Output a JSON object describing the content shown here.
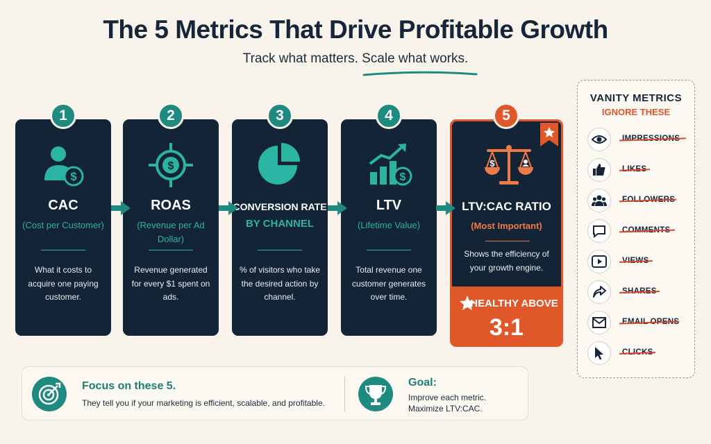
{
  "header": {
    "title": "The 5 Metrics That Drive Profitable Growth",
    "subtitle": "Track what matters. Scale what works."
  },
  "metrics": [
    {
      "number": "1",
      "title": "CAC",
      "subtitle": "(Cost per Customer)",
      "description": "What it costs to acquire one paying customer.",
      "icon": "customer-dollar-icon"
    },
    {
      "number": "2",
      "title": "ROAS",
      "subtitle": "(Revenue per Ad Dollar)",
      "description": "Revenue generated for every $1 spent on ads.",
      "icon": "target-dollar-icon"
    },
    {
      "number": "3",
      "title": "CONVERSION RATE",
      "subtitle": "BY CHANNEL",
      "description": "% of visitors who take the desired action by channel.",
      "icon": "pie-chart-icon"
    },
    {
      "number": "4",
      "title": "LTV",
      "subtitle": "(Lifetime Value)",
      "description": "Total revenue one customer generates over time.",
      "icon": "growth-chart-icon"
    },
    {
      "number": "5",
      "title": "LTV:CAC RATIO",
      "subtitle": "(Most Important)",
      "description": "Shows the efficiency of your growth engine.",
      "icon": "balance-scale-icon",
      "highlight_label": "HEALTHY ABOVE",
      "highlight_value": "3:1"
    }
  ],
  "bottom": {
    "focus_title": "Focus on these 5.",
    "focus_text": "They tell you if your marketing is efficient, scalable, and profitable.",
    "goal_title": "Goal:",
    "goal_line1": "Improve each metric.",
    "goal_line2": "Maximize LTV:CAC."
  },
  "vanity": {
    "title": "VANITY METRICS",
    "subtitle": "IGNORE THESE",
    "items": [
      {
        "label": "IMPRESSIONS",
        "icon": "eye-icon"
      },
      {
        "label": "LIKES",
        "icon": "thumbs-up-icon"
      },
      {
        "label": "FOLLOWERS",
        "icon": "people-icon"
      },
      {
        "label": "COMMENTS",
        "icon": "comment-icon"
      },
      {
        "label": "VIEWS",
        "icon": "play-icon"
      },
      {
        "label": "SHARES",
        "icon": "share-icon"
      },
      {
        "label": "EMAIL OPENS",
        "icon": "envelope-icon"
      },
      {
        "label": "CLICKS",
        "icon": "cursor-icon"
      }
    ]
  },
  "colors": {
    "background": "#f8f4ec",
    "navy": "#142437",
    "teal": "#1f8a80",
    "orange": "#e0572a"
  }
}
